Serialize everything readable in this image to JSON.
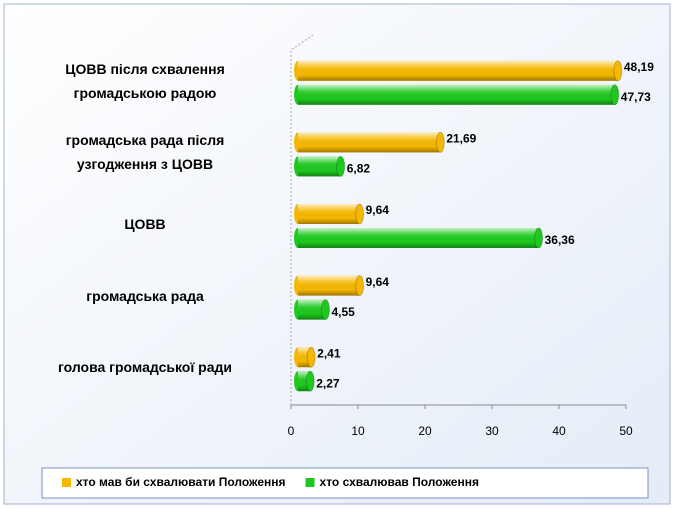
{
  "chart_data": {
    "type": "bar",
    "orientation": "horizontal",
    "categories": [
      "ЦОВВ після схвалення\nгромадською радою",
      "громадська рада після\nузгодження з ЦОВВ",
      "ЦОВВ",
      "громадська рада",
      "голова громадської ради"
    ],
    "series": [
      {
        "name": "хто мав би схвалювати Положення",
        "color": "#f5b800",
        "values": [
          48.19,
          21.69,
          9.64,
          9.64,
          2.41
        ],
        "value_labels": [
          "48,19",
          "21,69",
          "9,64",
          "9,64",
          "2,41"
        ]
      },
      {
        "name": "хто схвалював Положення",
        "color": "#1ec81e",
        "values": [
          47.73,
          6.82,
          36.36,
          4.55,
          2.27
        ],
        "value_labels": [
          "47,73",
          "6,82",
          "36,36",
          "4,55",
          "2,27"
        ]
      }
    ],
    "xlim": [
      0,
      50
    ],
    "xticks": [
      0,
      10,
      20,
      30,
      40,
      50
    ],
    "legend": "bottom"
  }
}
